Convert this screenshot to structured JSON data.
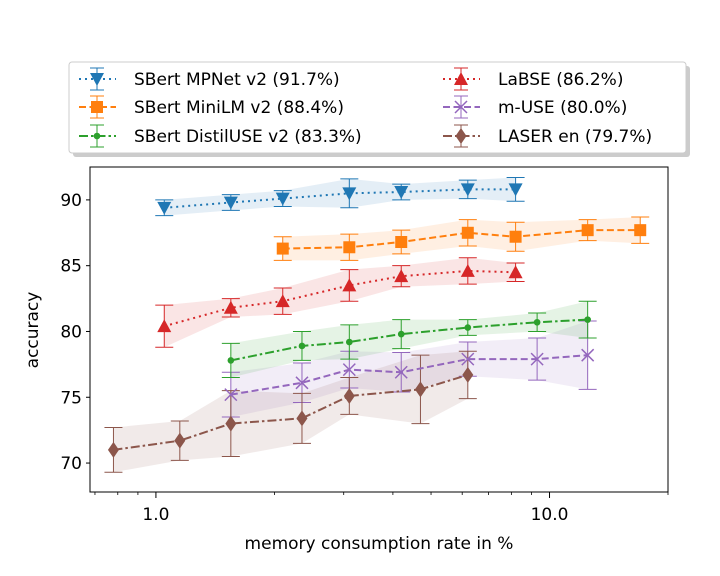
{
  "chart_data": {
    "type": "line",
    "xlabel": "memory consumption rate in %",
    "ylabel": "accuracy",
    "xscale": "log",
    "xlim": [
      0.68,
      20
    ],
    "ylim": [
      67.8,
      92.5
    ],
    "xticks": [
      {
        "value": 1.0,
        "label": "1.0"
      },
      {
        "value": 10.0,
        "label": "10.0"
      }
    ],
    "yticks": [
      {
        "value": 70,
        "label": "70"
      },
      {
        "value": 75,
        "label": "75"
      },
      {
        "value": 80,
        "label": "80"
      },
      {
        "value": 85,
        "label": "85"
      },
      {
        "value": 90,
        "label": "90"
      }
    ],
    "legend_position": "above",
    "series": [
      {
        "name": "SBert MPNet v2 (91.7%)",
        "color": "#1f77b4",
        "marker": "triangle-down",
        "linestyle": "dotted",
        "x": [
          1.05,
          1.55,
          2.1,
          3.1,
          4.2,
          6.2,
          8.2
        ],
        "y": [
          89.4,
          89.8,
          90.1,
          90.5,
          90.6,
          90.8,
          90.8
        ],
        "err": [
          0.6,
          0.6,
          0.6,
          1.1,
          0.6,
          0.7,
          0.9
        ]
      },
      {
        "name": "LaBSE (86.2%)",
        "color": "#d62728",
        "marker": "triangle-up",
        "linestyle": "dotted",
        "x": [
          1.05,
          1.55,
          2.1,
          3.1,
          4.2,
          6.2,
          8.2
        ],
        "y": [
          80.4,
          81.8,
          82.3,
          83.5,
          84.2,
          84.6,
          84.5
        ],
        "err": [
          1.6,
          0.7,
          1.0,
          1.2,
          0.8,
          1.0,
          0.7
        ]
      },
      {
        "name": "SBert MiniLM v2 (88.4%)",
        "color": "#ff7f0e",
        "marker": "square",
        "linestyle": "dashed",
        "x": [
          2.1,
          3.1,
          4.2,
          6.2,
          8.2,
          12.5,
          17.0
        ],
        "y": [
          86.3,
          86.4,
          86.8,
          87.5,
          87.2,
          87.7,
          87.7
        ],
        "err": [
          0.9,
          1.0,
          0.9,
          1.0,
          1.1,
          0.8,
          1.0
        ]
      },
      {
        "name": "m-USE (80.0%)",
        "color": "#9467bd",
        "marker": "x",
        "linestyle": "dashed",
        "x": [
          1.55,
          2.35,
          3.1,
          4.2,
          6.2,
          9.3,
          12.5
        ],
        "y": [
          75.2,
          76.1,
          77.1,
          76.9,
          77.9,
          77.9,
          78.2
        ],
        "err": [
          1.7,
          1.5,
          1.4,
          1.5,
          1.3,
          1.6,
          2.6
        ]
      },
      {
        "name": "SBert DistilUSE v2 (83.3%)",
        "color": "#2ca02c",
        "marker": "circle",
        "linestyle": "dashdot",
        "x": [
          1.55,
          2.35,
          3.1,
          4.2,
          6.2,
          9.3,
          12.5
        ],
        "y": [
          77.8,
          78.9,
          79.2,
          79.8,
          80.3,
          80.7,
          80.9
        ],
        "err": [
          1.3,
          1.1,
          1.3,
          1.1,
          0.6,
          0.7,
          1.4
        ]
      },
      {
        "name": "LASER en (79.7%)",
        "color": "#8c564b",
        "marker": "diamond",
        "linestyle": "dashdot",
        "x": [
          0.78,
          1.15,
          1.55,
          2.35,
          3.1,
          4.7,
          6.2
        ],
        "y": [
          71.0,
          71.7,
          73.0,
          73.4,
          75.1,
          75.6,
          76.7
        ],
        "err": [
          1.7,
          1.5,
          2.5,
          1.9,
          1.4,
          2.6,
          1.8
        ]
      }
    ],
    "legend_order": [
      0,
      2,
      4,
      1,
      3,
      5
    ]
  }
}
